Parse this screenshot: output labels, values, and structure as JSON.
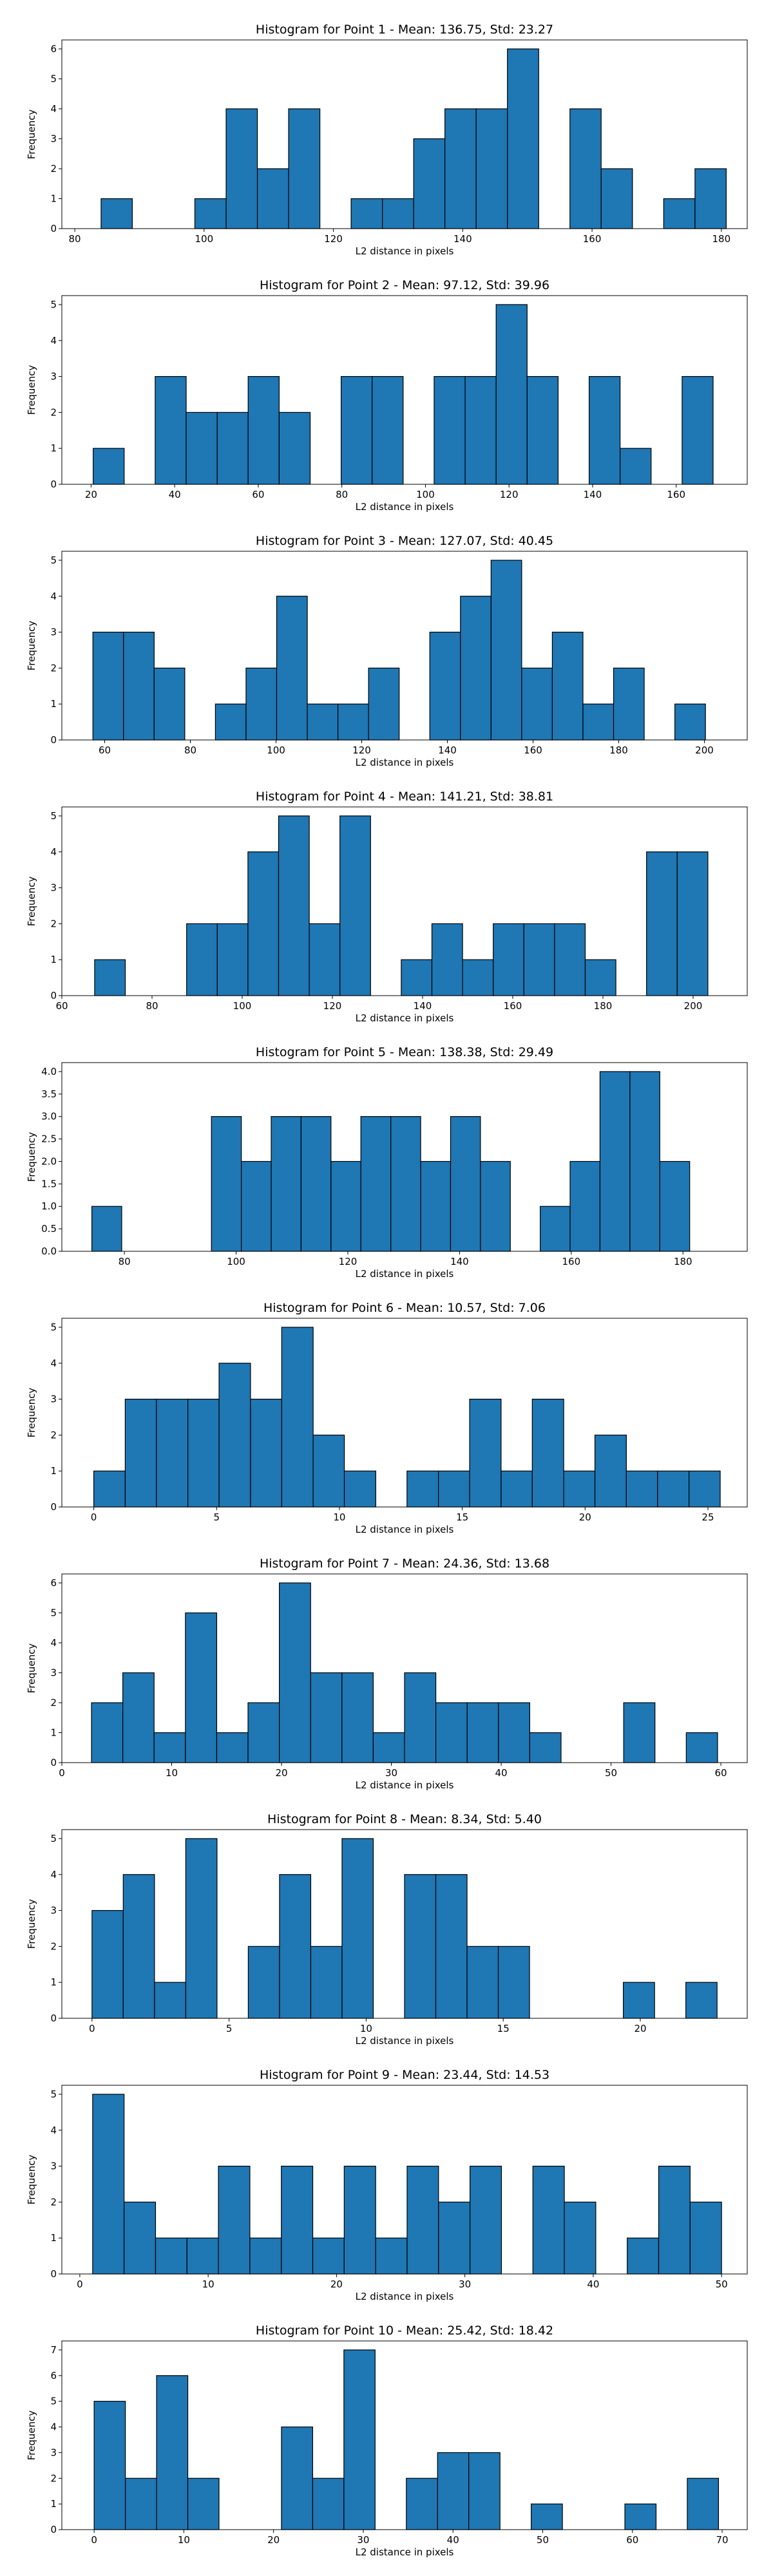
{
  "chart_data": [
    {
      "type": "bar",
      "title": "Histogram for Point 1 - Mean: 136.75, Std: 23.27",
      "xlabel": "L2 distance in pixels",
      "ylabel": "Frequency",
      "xlim": [
        78,
        184
      ],
      "ylim": [
        0,
        6.3
      ],
      "xticks": [
        80,
        100,
        120,
        140,
        160,
        180
      ],
      "yticks": [
        0,
        1,
        2,
        3,
        4,
        5,
        6
      ],
      "bin_edges": [
        84.07,
        88.9,
        93.74,
        98.57,
        103.41,
        108.24,
        113.07,
        117.91,
        122.74,
        127.58,
        132.41,
        137.24,
        142.08,
        146.91,
        151.75,
        156.58,
        161.41,
        166.25,
        171.08,
        175.92,
        180.75
      ],
      "values": [
        1,
        0,
        0,
        1,
        4,
        2,
        4,
        0,
        1,
        1,
        3,
        4,
        4,
        6,
        0,
        4,
        2,
        0,
        1,
        2
      ]
    },
    {
      "type": "bar",
      "title": "Histogram for Point 2 - Mean: 97.12, Std: 39.96",
      "xlabel": "L2 distance in pixels",
      "ylabel": "Frequency",
      "xlim": [
        13,
        177
      ],
      "ylim": [
        0,
        5.25
      ],
      "xticks": [
        20,
        40,
        60,
        80,
        100,
        120,
        140,
        160
      ],
      "yticks": [
        0,
        1,
        2,
        3,
        4,
        5
      ],
      "bin_edges": [
        20.5,
        27.92,
        35.33,
        42.75,
        50.17,
        57.58,
        65.0,
        72.42,
        79.83,
        87.25,
        94.67,
        102.08,
        109.5,
        116.92,
        124.33,
        131.75,
        139.17,
        146.58,
        154.0,
        161.42,
        168.83
      ],
      "values": [
        1,
        0,
        3,
        2,
        2,
        3,
        2,
        0,
        3,
        3,
        0,
        3,
        3,
        5,
        3,
        0,
        3,
        1,
        0,
        3
      ]
    },
    {
      "type": "bar",
      "title": "Histogram for Point 3 - Mean: 127.07, Std: 40.45",
      "xlabel": "L2 distance in pixels",
      "ylabel": "Frequency",
      "xlim": [
        50,
        210
      ],
      "ylim": [
        0,
        5.25
      ],
      "xticks": [
        60,
        80,
        100,
        120,
        140,
        160,
        180,
        200
      ],
      "yticks": [
        0,
        1,
        2,
        3,
        4,
        5
      ],
      "bin_edges": [
        57.25,
        64.4,
        71.55,
        78.7,
        85.85,
        93.0,
        100.15,
        107.3,
        114.45,
        121.6,
        128.75,
        135.9,
        143.05,
        150.2,
        157.35,
        164.5,
        171.65,
        178.8,
        185.95,
        193.1,
        200.25
      ],
      "values": [
        3,
        3,
        2,
        0,
        1,
        2,
        4,
        1,
        1,
        2,
        0,
        3,
        4,
        5,
        2,
        3,
        1,
        2,
        0,
        1
      ]
    },
    {
      "type": "bar",
      "title": "Histogram for Point 4 - Mean: 141.21, Std: 38.81",
      "xlabel": "L2 distance in pixels",
      "ylabel": "Frequency",
      "xlim": [
        60,
        212
      ],
      "ylim": [
        0,
        5.25
      ],
      "xticks": [
        60,
        80,
        100,
        120,
        140,
        160,
        180,
        200
      ],
      "yticks": [
        0,
        1,
        2,
        3,
        4,
        5
      ],
      "bin_edges": [
        67.27,
        74.07,
        80.87,
        87.67,
        94.47,
        101.27,
        108.07,
        114.87,
        121.67,
        128.47,
        135.27,
        142.07,
        148.87,
        155.67,
        162.47,
        169.27,
        176.07,
        182.87,
        189.67,
        196.47,
        203.27
      ],
      "values": [
        1,
        0,
        0,
        2,
        2,
        4,
        5,
        2,
        5,
        0,
        1,
        2,
        1,
        2,
        2,
        2,
        1,
        0,
        4,
        4
      ]
    },
    {
      "type": "bar",
      "title": "Histogram for Point 5 - Mean: 138.38, Std: 29.49",
      "xlabel": "L2 distance in pixels",
      "ylabel": "Frequency",
      "xlim": [
        68.8,
        191.5
      ],
      "ylim": [
        0,
        4.2
      ],
      "xticks": [
        80,
        100,
        120,
        140,
        160,
        180
      ],
      "yticks": [
        0.0,
        0.5,
        1.0,
        1.5,
        2.0,
        2.5,
        3.0,
        3.5,
        4.0
      ],
      "bin_edges": [
        74.17,
        79.52,
        84.88,
        90.23,
        95.58,
        100.93,
        106.28,
        111.63,
        116.98,
        122.33,
        127.69,
        133.04,
        138.39,
        143.74,
        149.09,
        154.44,
        159.79,
        165.14,
        170.5,
        175.85,
        181.2
      ],
      "values": [
        1,
        0,
        0,
        0,
        3,
        2,
        3,
        3,
        2,
        3,
        3,
        2,
        3,
        2,
        0,
        1,
        2,
        4,
        4,
        2
      ]
    },
    {
      "type": "bar",
      "title": "Histogram for Point 6 - Mean: 10.57, Std: 7.06",
      "xlabel": "L2 distance in pixels",
      "ylabel": "Frequency",
      "xlim": [
        -1.3,
        26.6
      ],
      "ylim": [
        0,
        5.25
      ],
      "xticks": [
        0,
        5,
        10,
        15,
        20,
        25
      ],
      "yticks": [
        0,
        1,
        2,
        3,
        4,
        5
      ],
      "bin_edges": [
        0.0,
        1.28,
        2.55,
        3.83,
        5.1,
        6.38,
        7.65,
        8.93,
        10.2,
        11.48,
        12.75,
        14.03,
        15.3,
        16.58,
        17.85,
        19.13,
        20.4,
        21.68,
        22.95,
        24.23,
        25.5
      ],
      "values": [
        1,
        3,
        3,
        3,
        4,
        3,
        5,
        2,
        1,
        0,
        1,
        1,
        3,
        1,
        3,
        1,
        2,
        1,
        1,
        1
      ]
    },
    {
      "type": "bar",
      "title": "Histogram for Point 7 - Mean: 24.36, Std: 13.68",
      "xlabel": "L2 distance in pixels",
      "ylabel": "Frequency",
      "xlim": [
        0,
        62.4
      ],
      "ylim": [
        0,
        6.3
      ],
      "xticks": [
        0,
        10,
        20,
        30,
        40,
        50,
        60
      ],
      "yticks": [
        0,
        1,
        2,
        3,
        4,
        5,
        6
      ],
      "bin_edges": [
        2.7,
        5.55,
        8.4,
        11.25,
        14.1,
        16.95,
        19.8,
        22.65,
        25.5,
        28.35,
        31.2,
        34.05,
        36.9,
        39.75,
        42.6,
        45.45,
        48.3,
        51.15,
        54.0,
        56.85,
        59.7
      ],
      "values": [
        2,
        3,
        1,
        5,
        1,
        2,
        6,
        3,
        3,
        1,
        3,
        2,
        2,
        2,
        1,
        0,
        0,
        2,
        0,
        1
      ]
    },
    {
      "type": "bar",
      "title": "Histogram for Point 8 - Mean: 8.34, Std: 5.40",
      "xlabel": "L2 distance in pixels",
      "ylabel": "Frequency",
      "xlim": [
        -1.1,
        23.9
      ],
      "ylim": [
        0,
        5.25
      ],
      "xticks": [
        0,
        5,
        10,
        15,
        20
      ],
      "yticks": [
        0,
        1,
        2,
        3,
        4,
        5
      ],
      "bin_edges": [
        0.0,
        1.14,
        2.28,
        3.42,
        4.56,
        5.7,
        6.84,
        7.98,
        9.12,
        10.26,
        11.4,
        12.54,
        13.68,
        14.82,
        15.96,
        17.1,
        18.24,
        19.38,
        20.52,
        21.66,
        22.8
      ],
      "values": [
        3,
        4,
        1,
        5,
        0,
        2,
        4,
        2,
        5,
        0,
        4,
        4,
        2,
        2,
        0,
        0,
        0,
        1,
        0,
        1
      ]
    },
    {
      "type": "bar",
      "title": "Histogram for Point 9 - Mean: 23.44, Std: 14.53",
      "xlabel": "L2 distance in pixels",
      "ylabel": "Frequency",
      "xlim": [
        -1.4,
        52.0
      ],
      "ylim": [
        0,
        5.25
      ],
      "xticks": [
        0,
        10,
        20,
        30,
        40,
        50
      ],
      "yticks": [
        0,
        1,
        2,
        3,
        4,
        5
      ],
      "bin_edges": [
        1.0,
        3.45,
        5.9,
        8.35,
        10.8,
        13.25,
        15.7,
        18.15,
        20.6,
        23.05,
        25.5,
        27.95,
        30.4,
        32.85,
        35.3,
        37.75,
        40.2,
        42.65,
        45.1,
        47.55,
        50.0
      ],
      "values": [
        5,
        2,
        1,
        1,
        3,
        1,
        3,
        1,
        3,
        1,
        3,
        2,
        3,
        0,
        3,
        2,
        0,
        1,
        3,
        2
      ]
    },
    {
      "type": "bar",
      "title": "Histogram for Point 10 - Mean: 25.42, Std: 18.42",
      "xlabel": "L2 distance in pixels",
      "ylabel": "Frequency",
      "xlim": [
        -3.6,
        72.8
      ],
      "ylim": [
        0,
        7.35
      ],
      "xticks": [
        0,
        10,
        20,
        30,
        40,
        50,
        60,
        70
      ],
      "yticks": [
        0,
        1,
        2,
        3,
        4,
        5,
        6,
        7
      ],
      "bin_edges": [
        0.0,
        3.48,
        6.96,
        10.44,
        13.92,
        17.4,
        20.88,
        24.36,
        27.84,
        31.32,
        34.8,
        38.28,
        41.76,
        45.24,
        48.72,
        52.2,
        55.68,
        59.16,
        62.64,
        66.12,
        69.6
      ],
      "values": [
        5,
        2,
        6,
        2,
        0,
        0,
        4,
        2,
        7,
        0,
        2,
        3,
        3,
        0,
        1,
        0,
        0,
        1,
        0,
        2
      ]
    }
  ],
  "colors": {
    "bar_fill": "#1f77b4",
    "bar_edge": "#000000",
    "axes": "#000000",
    "background": "#ffffff"
  }
}
